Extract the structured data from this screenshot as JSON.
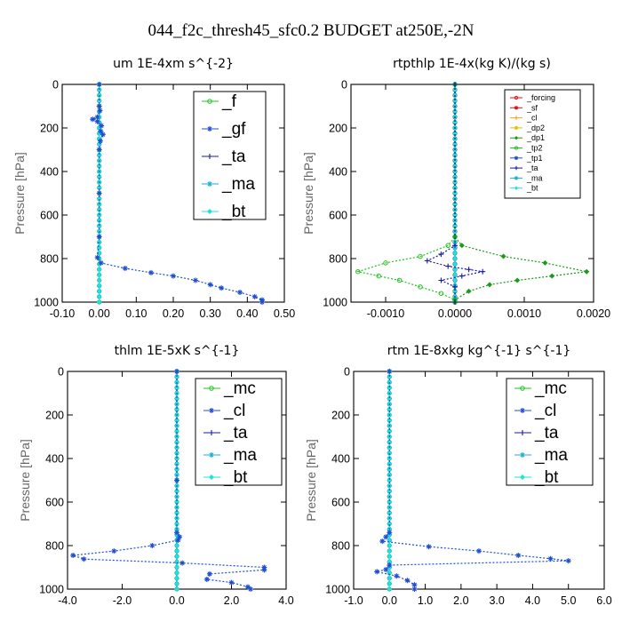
{
  "figure_title": "044_f2c_thresh45_sfc0.2  BUDGET at250E,-2N",
  "colors": {
    "green": "#22c222",
    "dkgreen": "#1a9a1a",
    "blue": "#1f4fd0",
    "navy": "#1a1aa0",
    "cyan": "#1aaed8",
    "cyanlt": "#20e0e0",
    "red": "#e01010",
    "orange": "#f0a030",
    "yellow": "#e0c000"
  },
  "chart_data": [
    {
      "type": "line",
      "title": "um   1E-4xm s^{-2}",
      "ylabel": "Pressure [hPa]",
      "xlim": [
        -0.1,
        0.5
      ],
      "ylim": [
        1000,
        0
      ],
      "xticks": [
        "-0.10",
        "0.00",
        "0.10",
        "0.20",
        "0.30",
        "0.40",
        "0.50"
      ],
      "xtick_values": [
        -0.1,
        0.0,
        0.1,
        0.2,
        0.3,
        0.4,
        0.5
      ],
      "yticks": [
        "0",
        "200",
        "400",
        "600",
        "800",
        "1000"
      ],
      "ytick_values": [
        0,
        200,
        400,
        600,
        800,
        1000
      ],
      "legend_position": "top-right",
      "legend_size": "large",
      "series": [
        {
          "name": "_f",
          "color": "green",
          "points": [
            [
              0.0,
              0
            ],
            [
              0.0,
              100
            ],
            [
              0.0,
              200
            ],
            [
              0.0,
              300
            ],
            [
              0.0,
              400
            ],
            [
              0.0,
              500
            ],
            [
              0.0,
              600
            ],
            [
              0.0,
              700
            ],
            [
              0.0,
              800
            ],
            [
              0.0,
              900
            ],
            [
              0.0,
              1000
            ]
          ]
        },
        {
          "name": "_gf",
          "color": "blue",
          "points": [
            [
              0.0,
              0
            ],
            [
              0.0,
              100
            ],
            [
              0.002,
              120
            ],
            [
              -0.005,
              150
            ],
            [
              -0.018,
              160
            ],
            [
              -0.005,
              170
            ],
            [
              0.006,
              190
            ],
            [
              0.004,
              215
            ],
            [
              0.01,
              230
            ],
            [
              0.003,
              260
            ],
            [
              0.0,
              300
            ],
            [
              0.0,
              500
            ],
            [
              0.0,
              700
            ],
            [
              -0.005,
              795
            ],
            [
              0.005,
              820
            ],
            [
              0.07,
              845
            ],
            [
              0.14,
              865
            ],
            [
              0.2,
              880
            ],
            [
              0.26,
              900
            ],
            [
              0.3,
              920
            ],
            [
              0.33,
              935
            ],
            [
              0.38,
              955
            ],
            [
              0.42,
              975
            ],
            [
              0.44,
              990
            ],
            [
              0.44,
              1000
            ]
          ]
        },
        {
          "name": "_ta",
          "color": "navy",
          "points": [
            [
              0.0,
              0
            ],
            [
              0.0,
              500
            ],
            [
              0.0,
              1000
            ]
          ]
        },
        {
          "name": "_ma",
          "color": "cyan",
          "points": [
            [
              0.0,
              0
            ],
            [
              0.0,
              500
            ],
            [
              0.0,
              1000
            ]
          ]
        },
        {
          "name": "_bt",
          "color": "cyanlt",
          "points": [
            [
              0.0,
              0
            ],
            [
              0.0,
              1000
            ]
          ]
        }
      ]
    },
    {
      "type": "line",
      "title": "rtpthlp   1E-4x(kg K)/(kg s)",
      "ylabel": "Pressure [hPa]",
      "xlim": [
        -0.0015,
        0.002
      ],
      "ylim": [
        1000,
        0
      ],
      "xticks": [
        "-0.0010",
        "0.0000",
        "0.0010",
        "0.0020"
      ],
      "xtick_values": [
        -0.001,
        0.0,
        0.001,
        0.002
      ],
      "yticks": [
        "0",
        "200",
        "400",
        "600",
        "800",
        "1000"
      ],
      "ytick_values": [
        0,
        200,
        400,
        600,
        800,
        1000
      ],
      "legend_position": "top-right",
      "legend_size": "small",
      "series": [
        {
          "name": "_forcing",
          "color": "red",
          "points": [
            [
              0.0,
              0
            ],
            [
              0.0,
              500
            ],
            [
              0.0,
              1000
            ]
          ]
        },
        {
          "name": "_sf",
          "color": "red",
          "points": [
            [
              0.0,
              0
            ],
            [
              0.0,
              1000
            ]
          ]
        },
        {
          "name": "_cl",
          "color": "orange",
          "points": [
            [
              0.0,
              0
            ],
            [
              0.0,
              1000
            ]
          ]
        },
        {
          "name": "_dp2",
          "color": "yellow",
          "points": [
            [
              0.0,
              0
            ],
            [
              0.0,
              1000
            ]
          ]
        },
        {
          "name": "_dp1",
          "color": "dkgreen",
          "points": [
            [
              0.0,
              0
            ],
            [
              0.0,
              700
            ],
            [
              0.0001,
              740
            ],
            [
              0.0007,
              790
            ],
            [
              0.0013,
              820
            ],
            [
              0.0019,
              860
            ],
            [
              0.0014,
              880
            ],
            [
              0.0009,
              900
            ],
            [
              0.0005,
              920
            ],
            [
              0.0002,
              950
            ],
            [
              0.0,
              990
            ],
            [
              0.0,
              1000
            ]
          ]
        },
        {
          "name": "_tp2",
          "color": "green",
          "points": [
            [
              0.0,
              0
            ],
            [
              0.0,
              700
            ],
            [
              -0.0001,
              740
            ],
            [
              -0.0005,
              790
            ],
            [
              -0.001,
              820
            ],
            [
              -0.0014,
              860
            ],
            [
              -0.0011,
              880
            ],
            [
              -0.0008,
              900
            ],
            [
              -0.0005,
              930
            ],
            [
              -0.0002,
              960
            ],
            [
              0.0,
              990
            ],
            [
              0.0,
              1000
            ]
          ]
        },
        {
          "name": "_tp1",
          "color": "blue",
          "points": [
            [
              0.0,
              0
            ],
            [
              0.0,
              1000
            ]
          ]
        },
        {
          "name": "_ta",
          "color": "navy",
          "points": [
            [
              0.0,
              0
            ],
            [
              0.0,
              740
            ],
            [
              -0.0002,
              780
            ],
            [
              -0.0004,
              810
            ],
            [
              -0.0001,
              835
            ],
            [
              0.0002,
              850
            ],
            [
              0.0004,
              860
            ],
            [
              0.0001,
              880
            ],
            [
              -0.0002,
              900
            ],
            [
              0.0,
              930
            ],
            [
              0.0,
              1000
            ]
          ]
        },
        {
          "name": "_ma",
          "color": "cyan",
          "points": [
            [
              0.0,
              0
            ],
            [
              0.0,
              1000
            ]
          ]
        },
        {
          "name": "_bt",
          "color": "cyanlt",
          "points": [
            [
              0.0,
              0
            ],
            [
              0.0,
              1000
            ]
          ]
        }
      ]
    },
    {
      "type": "line",
      "title": "thlm   1E-5xK s^{-1}",
      "ylabel": "Pressure [hPa]",
      "xlim": [
        -4.0,
        4.0
      ],
      "ylim": [
        1000,
        0
      ],
      "xticks": [
        "-4.0",
        "-2.0",
        "0.0",
        "2.0",
        "4.0"
      ],
      "xtick_values": [
        -4.0,
        -2.0,
        0.0,
        2.0,
        4.0
      ],
      "yticks": [
        "0",
        "200",
        "400",
        "600",
        "800",
        "1000"
      ],
      "ytick_values": [
        0,
        200,
        400,
        600,
        800,
        1000
      ],
      "legend_position": "top-right",
      "legend_size": "large",
      "series": [
        {
          "name": "_mc",
          "color": "green",
          "points": [
            [
              0.0,
              0
            ],
            [
              0.0,
              500
            ],
            [
              0.0,
              1000
            ]
          ]
        },
        {
          "name": "_cl",
          "color": "blue",
          "points": [
            [
              0.0,
              0
            ],
            [
              0.0,
              500
            ],
            [
              0.0,
              740
            ],
            [
              0.1,
              760
            ],
            [
              0.05,
              775
            ],
            [
              -0.9,
              800
            ],
            [
              -2.3,
              825
            ],
            [
              -3.8,
              845
            ],
            [
              -3.4,
              862
            ],
            [
              0.2,
              880
            ],
            [
              3.2,
              900
            ],
            [
              3.2,
              912
            ],
            [
              1.2,
              930
            ],
            [
              1.1,
              955
            ],
            [
              2.0,
              970
            ],
            [
              2.6,
              990
            ],
            [
              2.7,
              1000
            ]
          ]
        },
        {
          "name": "_ta",
          "color": "navy",
          "points": [
            [
              0.0,
              0
            ],
            [
              0.0,
              500
            ],
            [
              0.0,
              1000
            ]
          ]
        },
        {
          "name": "_ma",
          "color": "cyan",
          "points": [
            [
              0.0,
              0
            ],
            [
              0.0,
              1000
            ]
          ]
        },
        {
          "name": "_bt",
          "color": "cyanlt",
          "points": [
            [
              0.0,
              0
            ],
            [
              0.0,
              1000
            ]
          ]
        }
      ]
    },
    {
      "type": "line",
      "title": "rtm   1E-8xkg kg^{-1} s^{-1}",
      "ylabel": "Pressure [hPa]",
      "xlim": [
        -1.0,
        6.0
      ],
      "ylim": [
        1000,
        0
      ],
      "xticks": [
        "-1.0",
        "0.0",
        "1.0",
        "2.0",
        "3.0",
        "4.0",
        "5.0",
        "6.0"
      ],
      "xtick_values": [
        -1.0,
        0.0,
        1.0,
        2.0,
        3.0,
        4.0,
        5.0,
        6.0
      ],
      "yticks": [
        "0",
        "200",
        "400",
        "600",
        "800",
        "1000"
      ],
      "ytick_values": [
        0,
        200,
        400,
        600,
        800,
        1000
      ],
      "legend_position": "top-right",
      "legend_size": "large",
      "series": [
        {
          "name": "_mc",
          "color": "green",
          "points": [
            [
              0.0,
              0
            ],
            [
              0.0,
              500
            ],
            [
              0.0,
              1000
            ]
          ]
        },
        {
          "name": "_cl",
          "color": "blue",
          "points": [
            [
              0.0,
              0
            ],
            [
              0.0,
              740
            ],
            [
              -0.1,
              760
            ],
            [
              -0.2,
              780
            ],
            [
              1.1,
              805
            ],
            [
              2.5,
              825
            ],
            [
              3.6,
              845
            ],
            [
              4.5,
              860
            ],
            [
              5.0,
              870
            ],
            [
              0.0,
              890
            ],
            [
              -0.1,
              910
            ],
            [
              -0.35,
              920
            ],
            [
              0.2,
              940
            ],
            [
              0.5,
              960
            ],
            [
              0.7,
              980
            ],
            [
              0.7,
              1000
            ]
          ]
        },
        {
          "name": "_ta",
          "color": "navy",
          "points": [
            [
              0.0,
              0
            ],
            [
              0.0,
              500
            ],
            [
              0.0,
              1000
            ]
          ]
        },
        {
          "name": "_ma",
          "color": "cyan",
          "points": [
            [
              0.0,
              0
            ],
            [
              0.0,
              1000
            ]
          ]
        },
        {
          "name": "_bt",
          "color": "cyanlt",
          "points": [
            [
              0.0,
              0
            ],
            [
              0.0,
              1000
            ]
          ]
        }
      ]
    }
  ]
}
